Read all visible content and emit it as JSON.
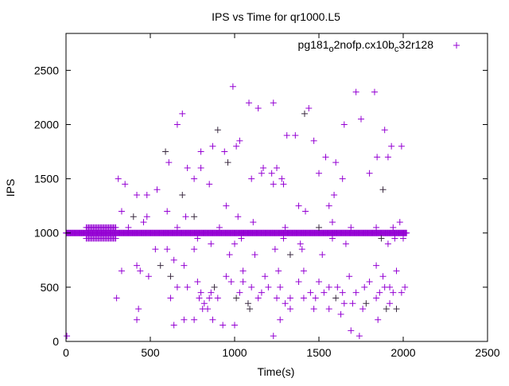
{
  "chart_data": {
    "type": "scatter",
    "title": "IPS vs Time for qr1000.L5",
    "xlabel": "Time(s)",
    "ylabel": "IPS",
    "xlim": [
      0,
      2500
    ],
    "ylim": [
      0,
      2840
    ],
    "xticks": [
      0,
      500,
      1000,
      1500,
      2000,
      2500
    ],
    "yticks": [
      0,
      500,
      1000,
      1500,
      2000,
      2500
    ],
    "grid": false,
    "legend_position": "top-right",
    "color": "#9400d3",
    "series": [
      {
        "name": "pg181_o2nofp.cx10b_c32r128",
        "legend_main": "pg181",
        "legend_sub1": "o",
        "legend_mid": "2nofp.cx10b",
        "legend_sub2": "c",
        "legend_end": "32r128",
        "band": {
          "x_start": 0,
          "x_end": 2020,
          "step": 4,
          "y": 1000
        },
        "band_spread": {
          "x_start": 120,
          "x_end": 300,
          "step": 7,
          "y_values": [
            950,
            1050
          ]
        },
        "points": [
          [
            990,
            2350
          ],
          [
            1085,
            2200
          ],
          [
            1140,
            2150
          ],
          [
            1230,
            2200
          ],
          [
            1415,
            2100
          ],
          [
            1440,
            2150
          ],
          [
            1650,
            2000
          ],
          [
            1720,
            2300
          ],
          [
            1750,
            2050
          ],
          [
            1830,
            2300
          ],
          [
            1890,
            1950
          ],
          [
            660,
            2000
          ],
          [
            690,
            2100
          ],
          [
            900,
            1950
          ],
          [
            1030,
            1850
          ],
          [
            1010,
            1800
          ],
          [
            1310,
            1900
          ],
          [
            1360,
            1900
          ],
          [
            1470,
            1850
          ],
          [
            1540,
            1700
          ],
          [
            1845,
            1700
          ],
          [
            1930,
            1800
          ],
          [
            590,
            1750
          ],
          [
            800,
            1750
          ],
          [
            870,
            1800
          ],
          [
            940,
            1750
          ],
          [
            1170,
            1600
          ],
          [
            1250,
            1600
          ],
          [
            1600,
            1650
          ],
          [
            1910,
            1700
          ],
          [
            1990,
            1800
          ],
          [
            960,
            1650
          ],
          [
            610,
            1650
          ],
          [
            1160,
            1550
          ],
          [
            1220,
            1550
          ],
          [
            1500,
            1550
          ],
          [
            1100,
            1500
          ],
          [
            1280,
            1500
          ],
          [
            1640,
            1500
          ],
          [
            1800,
            1550
          ],
          [
            1880,
            1400
          ],
          [
            800,
            1600
          ],
          [
            760,
            1500
          ],
          [
            720,
            1600
          ],
          [
            310,
            1500
          ],
          [
            350,
            1450
          ],
          [
            420,
            1350
          ],
          [
            480,
            1350
          ],
          [
            540,
            1400
          ],
          [
            690,
            1350
          ],
          [
            850,
            1450
          ],
          [
            1230,
            1450
          ],
          [
            1290,
            1450
          ],
          [
            1380,
            1250
          ],
          [
            1420,
            1200
          ],
          [
            1590,
            1350
          ],
          [
            1560,
            1250
          ],
          [
            330,
            1200
          ],
          [
            400,
            1150
          ],
          [
            480,
            1150
          ],
          [
            600,
            1200
          ],
          [
            710,
            1150
          ],
          [
            910,
            1050
          ],
          [
            950,
            1250
          ],
          [
            1020,
            1150
          ],
          [
            1110,
            1100
          ],
          [
            1300,
            1050
          ],
          [
            1500,
            1050
          ],
          [
            1580,
            1100
          ],
          [
            1690,
            1050
          ],
          [
            1840,
            1050
          ],
          [
            1940,
            1050
          ],
          [
            1980,
            1100
          ],
          [
            370,
            1050
          ],
          [
            460,
            1100
          ],
          [
            660,
            1050
          ],
          [
            760,
            1150
          ],
          [
            300,
            400
          ],
          [
            330,
            650
          ],
          [
            420,
            700
          ],
          [
            440,
            650
          ],
          [
            430,
            300
          ],
          [
            420,
            200
          ],
          [
            490,
            600
          ],
          [
            530,
            850
          ],
          [
            560,
            700
          ],
          [
            620,
            400
          ],
          [
            640,
            150
          ],
          [
            700,
            200
          ],
          [
            760,
            200
          ],
          [
            840,
            300
          ],
          [
            870,
            200
          ],
          [
            930,
            150
          ],
          [
            1000,
            150
          ],
          [
            1090,
            300
          ],
          [
            1140,
            400
          ],
          [
            1230,
            50
          ],
          [
            1270,
            200
          ],
          [
            1300,
            350
          ],
          [
            1500,
            550
          ],
          [
            1630,
            250
          ],
          [
            1690,
            100
          ],
          [
            1740,
            50
          ],
          [
            1780,
            350
          ],
          [
            1850,
            200
          ],
          [
            1920,
            350
          ],
          [
            1990,
            450
          ],
          [
            2010,
            500
          ],
          [
            1770,
            500
          ],
          [
            1840,
            700
          ],
          [
            1880,
            600
          ],
          [
            1960,
            650
          ],
          [
            1330,
            800
          ],
          [
            1400,
            850
          ],
          [
            1520,
            800
          ],
          [
            1410,
            650
          ],
          [
            1240,
            850
          ],
          [
            1120,
            800
          ],
          [
            1050,
            650
          ],
          [
            970,
            800
          ],
          [
            950,
            600
          ],
          [
            880,
            500
          ],
          [
            800,
            450
          ],
          [
            780,
            550
          ],
          [
            850,
            400
          ],
          [
            720,
            500
          ],
          [
            660,
            500
          ],
          [
            700,
            700
          ],
          [
            760,
            850
          ],
          [
            600,
            850
          ],
          [
            620,
            600
          ],
          [
            640,
            750
          ],
          [
            1180,
            600
          ],
          [
            1260,
            650
          ],
          [
            1200,
            500
          ],
          [
            1330,
            400
          ],
          [
            1380,
            550
          ],
          [
            1450,
            450
          ],
          [
            1560,
            500
          ],
          [
            1600,
            400
          ],
          [
            1680,
            600
          ],
          [
            1720,
            450
          ],
          [
            1800,
            550
          ],
          [
            1890,
            500
          ],
          [
            1940,
            450
          ],
          [
            1030,
            450
          ],
          [
            1100,
            500
          ],
          [
            1160,
            450
          ],
          [
            1080,
            350
          ],
          [
            1330,
            300
          ],
          [
            1480,
            400
          ],
          [
            1560,
            300
          ],
          [
            1640,
            450
          ],
          [
            1700,
            350
          ],
          [
            1760,
            300
          ],
          [
            1840,
            400
          ],
          [
            1920,
            500
          ],
          [
            1960,
            300
          ],
          [
            820,
            350
          ],
          [
            900,
            400
          ],
          [
            980,
            550
          ],
          [
            1050,
            550
          ],
          [
            5,
            50
          ],
          [
            790,
            400
          ],
          [
            810,
            300
          ],
          [
            860,
            450
          ],
          [
            1010,
            400
          ],
          [
            1250,
            400
          ],
          [
            1270,
            500
          ],
          [
            1410,
            400
          ],
          [
            1470,
            300
          ],
          [
            1530,
            450
          ],
          [
            1610,
            500
          ],
          [
            1650,
            350
          ],
          [
            1860,
            450
          ],
          [
            1900,
            300
          ],
          [
            780,
            950
          ],
          [
            860,
            900
          ],
          [
            1000,
            900
          ],
          [
            1040,
            950
          ],
          [
            1290,
            950
          ],
          [
            1390,
            900
          ],
          [
            1580,
            950
          ],
          [
            1660,
            900
          ],
          [
            1870,
            950
          ],
          [
            1910,
            900
          ],
          [
            1950,
            950
          ],
          [
            2000,
            950
          ]
        ]
      }
    ]
  }
}
